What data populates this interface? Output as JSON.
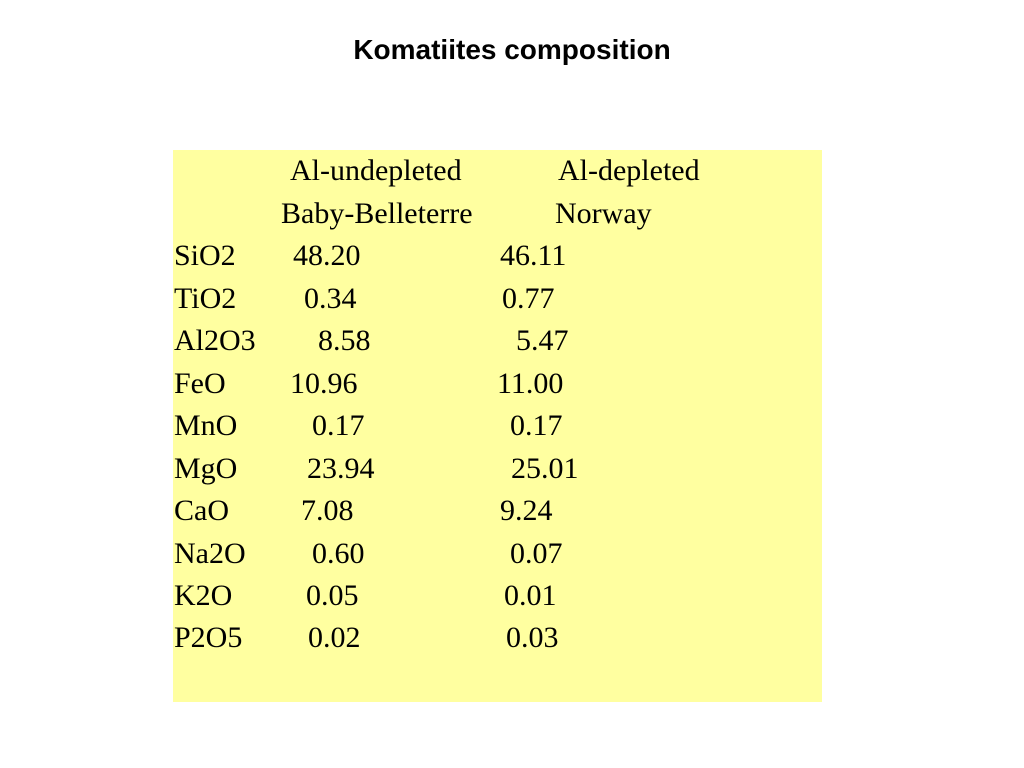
{
  "title": "Komatiites composition",
  "header": {
    "col1_line1": "Al-undepleted",
    "col2_line1": "Al-depleted",
    "col1_line2": "Baby-Belleterre",
    "col2_line2": "Norway"
  },
  "rows": [
    {
      "oxide": "SiO2",
      "a": "48.20",
      "b": "46.11"
    },
    {
      "oxide": "TiO2",
      "a": "0.34",
      "b": "0.77"
    },
    {
      "oxide": "Al2O3",
      "a": "8.58",
      "b": "5.47"
    },
    {
      "oxide": "FeO",
      "a": "10.96",
      "b": "11.00"
    },
    {
      "oxide": "MnO",
      "a": "0.17",
      "b": "0.17"
    },
    {
      "oxide": "MgO",
      "a": "23.94",
      "b": "25.01"
    },
    {
      "oxide": "CaO",
      "a": "7.08",
      "b": "9.24"
    },
    {
      "oxide": "Na2O",
      "a": "0.60",
      "b": "0.07"
    },
    {
      "oxide": "K2O",
      "a": "0.05",
      "b": "0.01"
    },
    {
      "oxide": "P2O5",
      "a": "0.02",
      "b": "0.03"
    }
  ],
  "colors": {
    "panel_background": "#ffffa0",
    "text": "#000000"
  }
}
